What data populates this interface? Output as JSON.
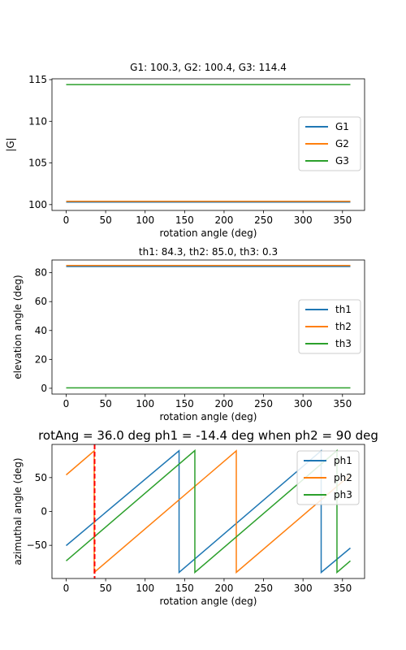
{
  "chart_data": [
    {
      "type": "line",
      "title": "G1: 100.3, G2: 100.4, G3: 114.4",
      "xlabel": "rotation angle (deg)",
      "ylabel": "|G|",
      "xlim": [
        -18,
        378
      ],
      "ylim": [
        99.3,
        115.1
      ],
      "xticks": [
        0,
        50,
        100,
        150,
        200,
        250,
        300,
        350
      ],
      "yticks": [
        100,
        105,
        110,
        115
      ],
      "legend_position": "center-right",
      "series": [
        {
          "name": "G1",
          "color": "#1f77b4",
          "x": [
            0,
            360
          ],
          "y": [
            100.3,
            100.3
          ]
        },
        {
          "name": "G2",
          "color": "#ff7f0e",
          "x": [
            0,
            360
          ],
          "y": [
            100.4,
            100.4
          ]
        },
        {
          "name": "G3",
          "color": "#2ca02c",
          "x": [
            0,
            360
          ],
          "y": [
            114.4,
            114.4
          ]
        }
      ]
    },
    {
      "type": "line",
      "title": "th1: 84.3, th2: 85.0, th3: 0.3",
      "xlabel": "rotation angle (deg)",
      "ylabel": "elevation angle (deg)",
      "xlim": [
        -18,
        378
      ],
      "ylim": [
        -4,
        88.8
      ],
      "xticks": [
        0,
        50,
        100,
        150,
        200,
        250,
        300,
        350
      ],
      "yticks": [
        0,
        20,
        40,
        60,
        80
      ],
      "legend_position": "center-right",
      "series": [
        {
          "name": "th1",
          "color": "#1f77b4",
          "x": [
            0,
            360
          ],
          "y": [
            84.3,
            84.3
          ]
        },
        {
          "name": "th2",
          "color": "#ff7f0e",
          "x": [
            0,
            360
          ],
          "y": [
            85.0,
            85.0
          ]
        },
        {
          "name": "th3",
          "color": "#2ca02c",
          "x": [
            0,
            360
          ],
          "y": [
            0.3,
            0.3
          ]
        }
      ]
    },
    {
      "type": "line",
      "title": "rotAng = 36.0 deg ph1 = -14.4 deg when ph2 = 90 deg",
      "xlabel": "rotation angle (deg)",
      "ylabel": "azimuthal angle (deg)",
      "xlim": [
        -18,
        378
      ],
      "ylim": [
        -99,
        99
      ],
      "xticks": [
        0,
        50,
        100,
        150,
        200,
        250,
        300,
        350
      ],
      "yticks": [
        -50,
        0,
        50
      ],
      "legend_position": "upper right",
      "vline": {
        "x": 36,
        "color": "#ff0000",
        "style": "dashed"
      },
      "series": [
        {
          "name": "ph1",
          "color": "#1f77b4",
          "x": [
            0,
            143,
            143,
            323,
            323,
            360
          ],
          "y": [
            -50.4,
            89.7,
            -90,
            89.7,
            -90,
            -54
          ]
        },
        {
          "name": "ph2",
          "color": "#ff7f0e",
          "x": [
            0,
            35.5,
            35.5,
            215.5,
            215.5,
            360
          ],
          "y": [
            54,
            89.5,
            -90,
            89.5,
            -90,
            54
          ]
        },
        {
          "name": "ph3",
          "color": "#2ca02c",
          "x": [
            0,
            163,
            163,
            343,
            343,
            360
          ],
          "y": [
            -73,
            90,
            -90,
            90,
            -90,
            -73
          ]
        }
      ]
    }
  ]
}
